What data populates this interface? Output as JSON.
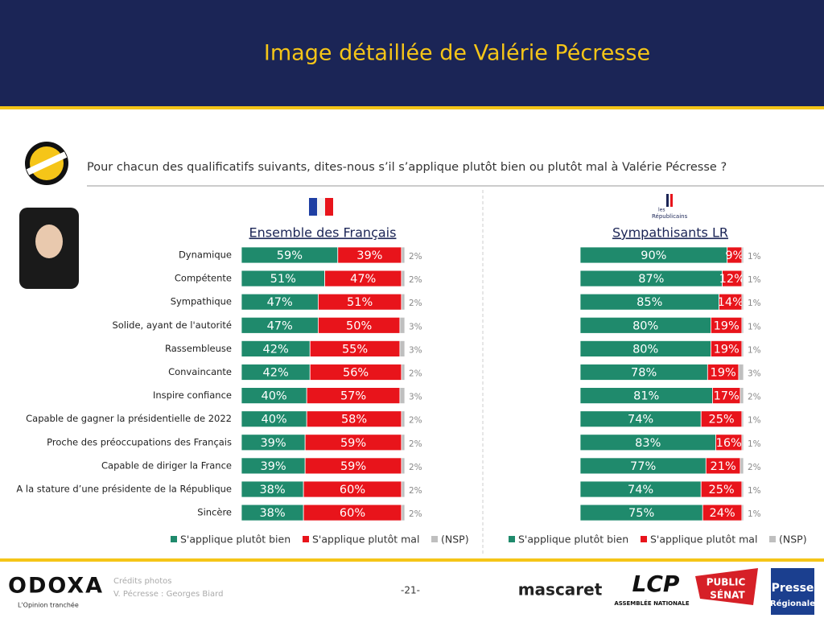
{
  "header": {
    "title": "Image détaillée de Valérie Pécresse"
  },
  "question": "Pour chacun des qualificatifs suivants, dites-nous s’il s’applique plutôt bien ou plutôt mal à Valérie Pécresse ?",
  "lr_logo": [
    "les",
    "Républicains"
  ],
  "chart_data": [
    {
      "type": "bar",
      "orientation": "horizontal",
      "stacked": true,
      "title": "Ensemble des Français",
      "categories": [
        "Dynamique",
        "Compétente",
        "Sympathique",
        "Solide, ayant de l'autorité",
        "Rassembleuse",
        "Convaincante",
        "Inspire confiance",
        "Capable de gagner la présidentielle de 2022",
        "Proche des préoccupations des Français",
        "Capable de diriger la France",
        "A la stature d’une présidente de la République",
        "Sincère"
      ],
      "series": [
        {
          "name": "S'applique plutôt bien",
          "color": "#1f8a6c",
          "values": [
            59,
            51,
            47,
            47,
            42,
            42,
            40,
            40,
            39,
            39,
            38,
            38
          ],
          "value_labels": [
            "59%",
            "51%",
            "47%",
            "47%",
            "42%",
            "42%",
            "40%",
            "40%",
            "39%",
            "39%",
            "38%",
            "38%"
          ]
        },
        {
          "name": "S'applique plutôt mal",
          "color": "#e8141b",
          "values": [
            39,
            47,
            51,
            50,
            55,
            56,
            57,
            58,
            59,
            59,
            60,
            60
          ],
          "value_labels": [
            "39%",
            "47%",
            "51%",
            "50%",
            "55%",
            "56%",
            "57%",
            "58%",
            "59%",
            "59%",
            "60%",
            "60%"
          ]
        },
        {
          "name": "(NSP)",
          "color": "#bfbfbf",
          "values": [
            2,
            2,
            2,
            3,
            3,
            2,
            3,
            2,
            2,
            2,
            2,
            2
          ],
          "value_labels": [
            "2%",
            "2%",
            "2%",
            "3%",
            "3%",
            "2%",
            "3%",
            "2%",
            "2%",
            "2%",
            "2%",
            "2%"
          ]
        }
      ]
    },
    {
      "type": "bar",
      "orientation": "horizontal",
      "stacked": true,
      "title": "Sympathisants LR",
      "series": [
        {
          "name": "S'applique plutôt bien",
          "color": "#1f8a6c",
          "values": [
            90,
            87,
            85,
            80,
            80,
            78,
            81,
            74,
            83,
            77,
            74,
            75
          ],
          "value_labels": [
            "90%",
            "87%",
            "85%",
            "80%",
            "80%",
            "78%",
            "81%",
            "74%",
            "83%",
            "77%",
            "74%",
            "75%"
          ]
        },
        {
          "name": "S'applique plutôt mal",
          "color": "#e8141b",
          "values": [
            9,
            12,
            14,
            19,
            19,
            19,
            17,
            25,
            16,
            21,
            25,
            24
          ],
          "value_labels": [
            "9%",
            "12%",
            "14%",
            "19%",
            "19%",
            "19%",
            "17%",
            "25%",
            "16%",
            "21%",
            "25%",
            "24%"
          ]
        },
        {
          "name": "(NSP)",
          "color": "#bfbfbf",
          "values": [
            1,
            1,
            1,
            1,
            1,
            3,
            2,
            1,
            1,
            2,
            1,
            1
          ],
          "value_labels": [
            "1%",
            "1%",
            "1%",
            "1%",
            "1%",
            "3%",
            "2%",
            "1%",
            "1%",
            "2%",
            "1%",
            "1%"
          ]
        }
      ]
    }
  ],
  "footer": {
    "credits": [
      "Crédits photos",
      "V. Pécresse : Georges Biard"
    ],
    "page": "-21-",
    "logos": {
      "odoxa": "ODOXA",
      "odoxa_tagline": "L'Opinion tranchée",
      "mascaret": "mascaret",
      "lcp": "LCP",
      "lcp_sub": "ASSEMBLÉE NATIONALE",
      "public_senat": [
        "PUBLIC",
        "SÉNAT"
      ],
      "presse": [
        "Presse",
        "Régionale"
      ]
    }
  }
}
